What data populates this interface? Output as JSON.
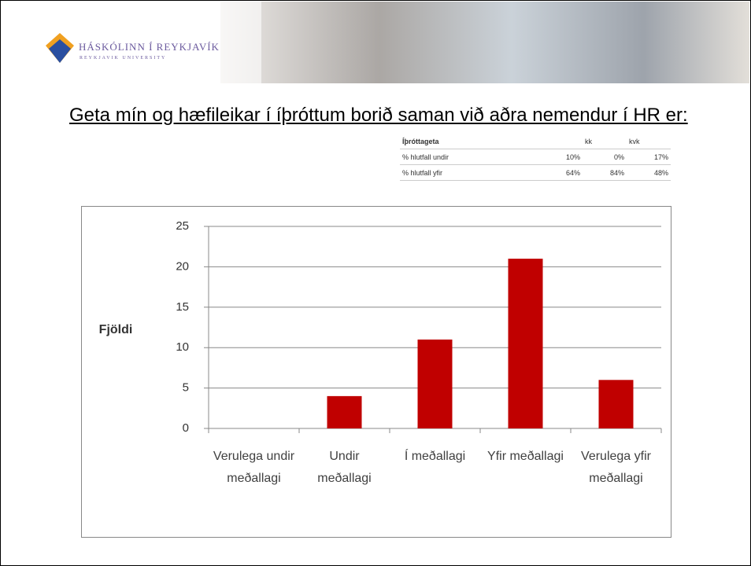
{
  "slide": {
    "logo": "HÁSKÓLINN Í REYKJAVÍK",
    "logo_sub": "REYKJAVIK UNIVERSITY",
    "heading": "Geta mín og hæfileikar í íþróttum borið saman við aðra nemendur í HR er:",
    "table": {
      "title": "Íþróttageta",
      "columns": [
        "kk",
        "kvk"
      ],
      "rows": [
        [
          "% hlutfall undir",
          "10%",
          "0%",
          "17%"
        ],
        [
          "% hlutfall yfir",
          "64%",
          "84%",
          "48%"
        ]
      ]
    }
  },
  "chart_data": {
    "type": "bar",
    "y_label": "Fjöldi",
    "categories": [
      "Verulega undir meðallagi",
      "Undir meðallagi",
      "Í meðallagi",
      "Yfir meðallagi",
      "Verulega yfir meðallagi"
    ],
    "values": [
      0,
      4,
      11,
      21,
      6
    ],
    "color": "#c00000",
    "ylim": [
      0,
      25
    ],
    "yticks": [
      0,
      5,
      10,
      15,
      20,
      25
    ],
    "grid": true
  }
}
